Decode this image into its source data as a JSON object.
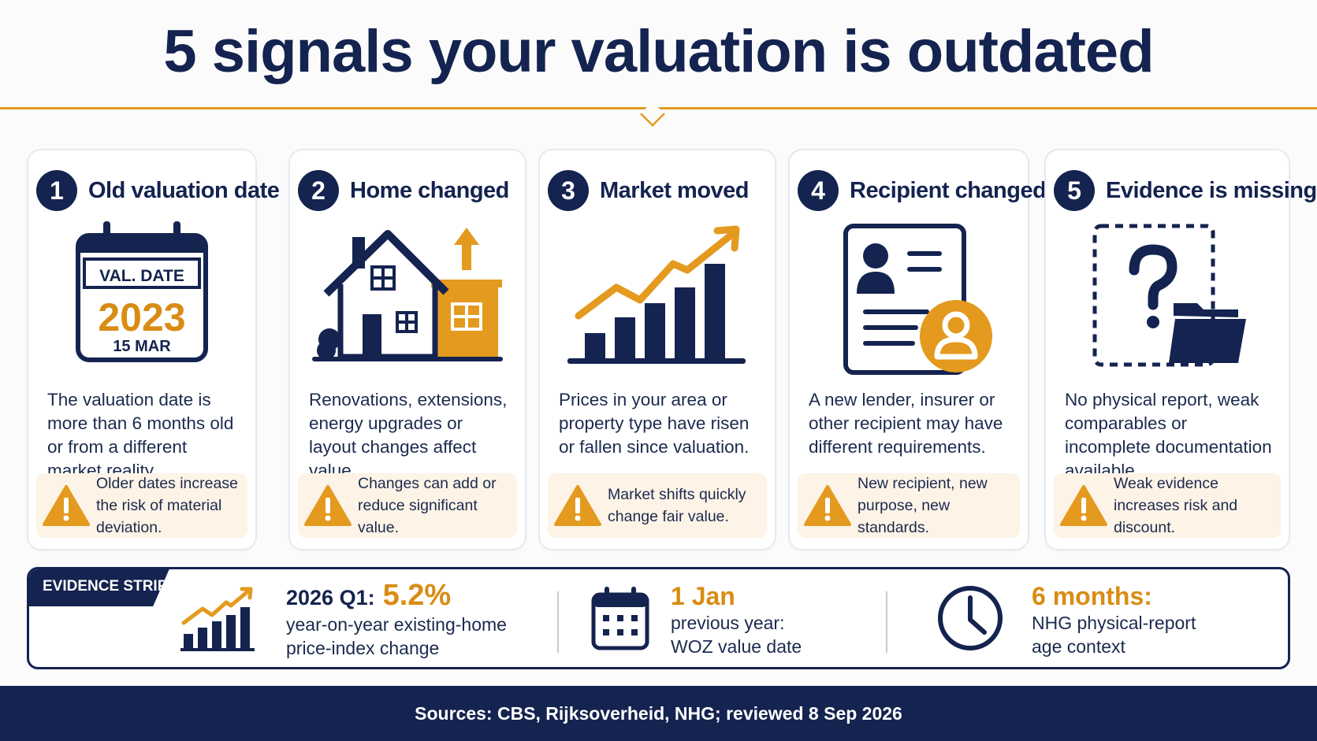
{
  "title": "5 signals your valuation is outdated",
  "colors": {
    "navy": "#14234f",
    "orange": "#e39a1e",
    "warn_bg": "#fdf3e6"
  },
  "cards": [
    {
      "number": "1",
      "title": "Old valuation date",
      "icon": "calendar-icon",
      "calendar": {
        "label": "VAL. DATE",
        "year": "2023",
        "day": "15 MAR"
      },
      "description": "The valuation date is more than 6 months old or from a different market reality.",
      "warning": "Older dates increase the risk of material deviation."
    },
    {
      "number": "2",
      "title": "Home changed",
      "icon": "house-extension-icon",
      "description": "Renovations, extensions, energy upgrades or layout changes affect value.",
      "warning": "Changes can add or reduce significant value."
    },
    {
      "number": "3",
      "title": "Market moved",
      "icon": "rising-chart-icon",
      "description": "Prices in your area or property type have risen or fallen since valuation.",
      "warning": "Market shifts quickly change fair value."
    },
    {
      "number": "4",
      "title": "Recipient changed",
      "icon": "id-card-user-icon",
      "description": "A new lender, insurer or other recipient may have different requirements.",
      "warning": "New recipient, new purpose, new standards."
    },
    {
      "number": "5",
      "title": "Evidence is missing",
      "icon": "missing-document-folder-icon",
      "description": "No physical report, weak comparables or incomplete documentation available.",
      "warning": "Weak evidence increases risk and discount."
    }
  ],
  "evidence_strip": {
    "tag": "EVIDENCE STRIP",
    "items": [
      {
        "icon": "bar-chart-trend-icon",
        "lead": "2026 Q1:",
        "highlight": "5.2%",
        "text": "year-on-year existing-home price-index change"
      },
      {
        "icon": "calendar-grid-icon",
        "highlight": "1 Jan",
        "text": "previous year: WOZ value date"
      },
      {
        "icon": "clock-icon",
        "highlight": "6 months:",
        "text": "NHG physical-report age context"
      }
    ]
  },
  "footer": "Sources: CBS, Rijksoverheid, NHG; reviewed 8 Sep 2026"
}
